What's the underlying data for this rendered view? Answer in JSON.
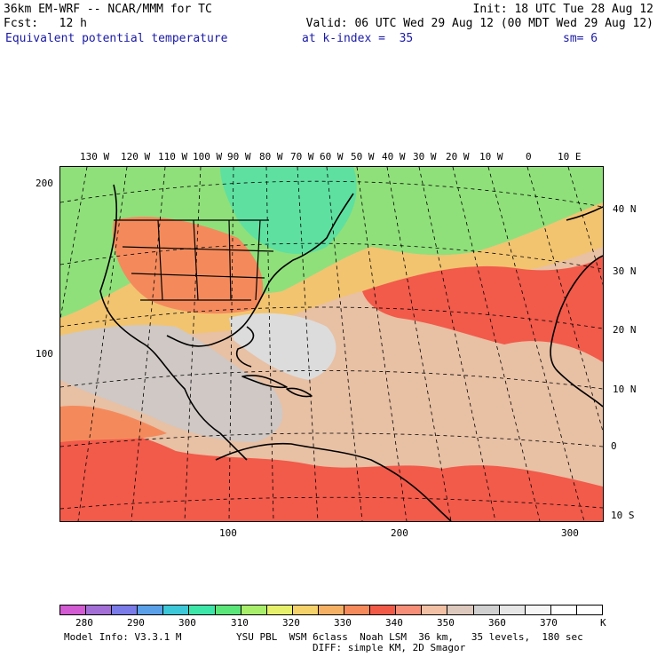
{
  "header": {
    "line1_left": "36km EM-WRF -- NCAR/MMM for TC",
    "line1_right": "Init: 18 UTC Tue 28 Aug 12",
    "line2_left": "Fcst:   12 h",
    "line2_right": "Valid: 06 UTC Wed 29 Aug 12 (00 MDT Wed 29 Aug 12)",
    "line3_left": "Equivalent potential temperature",
    "line3_mid": "at k-index =  35",
    "line3_right": "sm= 6"
  },
  "map": {
    "top_lon_labels": [
      "130 W",
      "120 W",
      "110 W",
      "100 W",
      "90 W",
      "80 W",
      "70 W",
      "60 W",
      "50 W",
      "40 W",
      "30 W",
      "20 W",
      "10 W",
      "0",
      "10 E"
    ],
    "right_lat_labels": [
      "40 N",
      "30 N",
      "20 N",
      "10 N",
      "0",
      "10 S"
    ],
    "left_grid_labels": [
      "200",
      "100"
    ],
    "bottom_grid_labels": [
      "100",
      "200",
      "300"
    ],
    "field_colors": {
      "cold": "#8fe07a",
      "cool": "#5ee0a0",
      "mid": "#f2c470",
      "warm": "#f48a5c",
      "hot": "#f25a4a",
      "tropical": "#e8c0a4",
      "grey": "#cfc8c4",
      "lightgrey": "#dcdcdc"
    }
  },
  "colorbar": {
    "colors": [
      "#d25ad2",
      "#a36fd6",
      "#7a7ae8",
      "#5aa0e8",
      "#3cc8d8",
      "#3ce6a8",
      "#5ae678",
      "#a8ee6a",
      "#e6f06a",
      "#f6d26a",
      "#f6b064",
      "#f68a5a",
      "#f25a48",
      "#f68e78",
      "#f2c0a4",
      "#dcc8bc",
      "#d0d0d0",
      "#e6e6e6",
      "#f6f6f6",
      "#ffffff",
      "#ffffff"
    ],
    "labels": [
      "280",
      "290",
      "300",
      "310",
      "320",
      "330",
      "340",
      "350",
      "360",
      "370"
    ],
    "unit": "K"
  },
  "footer": {
    "model_info": "Model Info: V3.3.1 M",
    "physics": "YSU PBL  WSM 6class  Noah LSM  36 km,   35 levels,  180 sec",
    "diffusion": "DIFF: simple KM, 2D Smagor"
  }
}
